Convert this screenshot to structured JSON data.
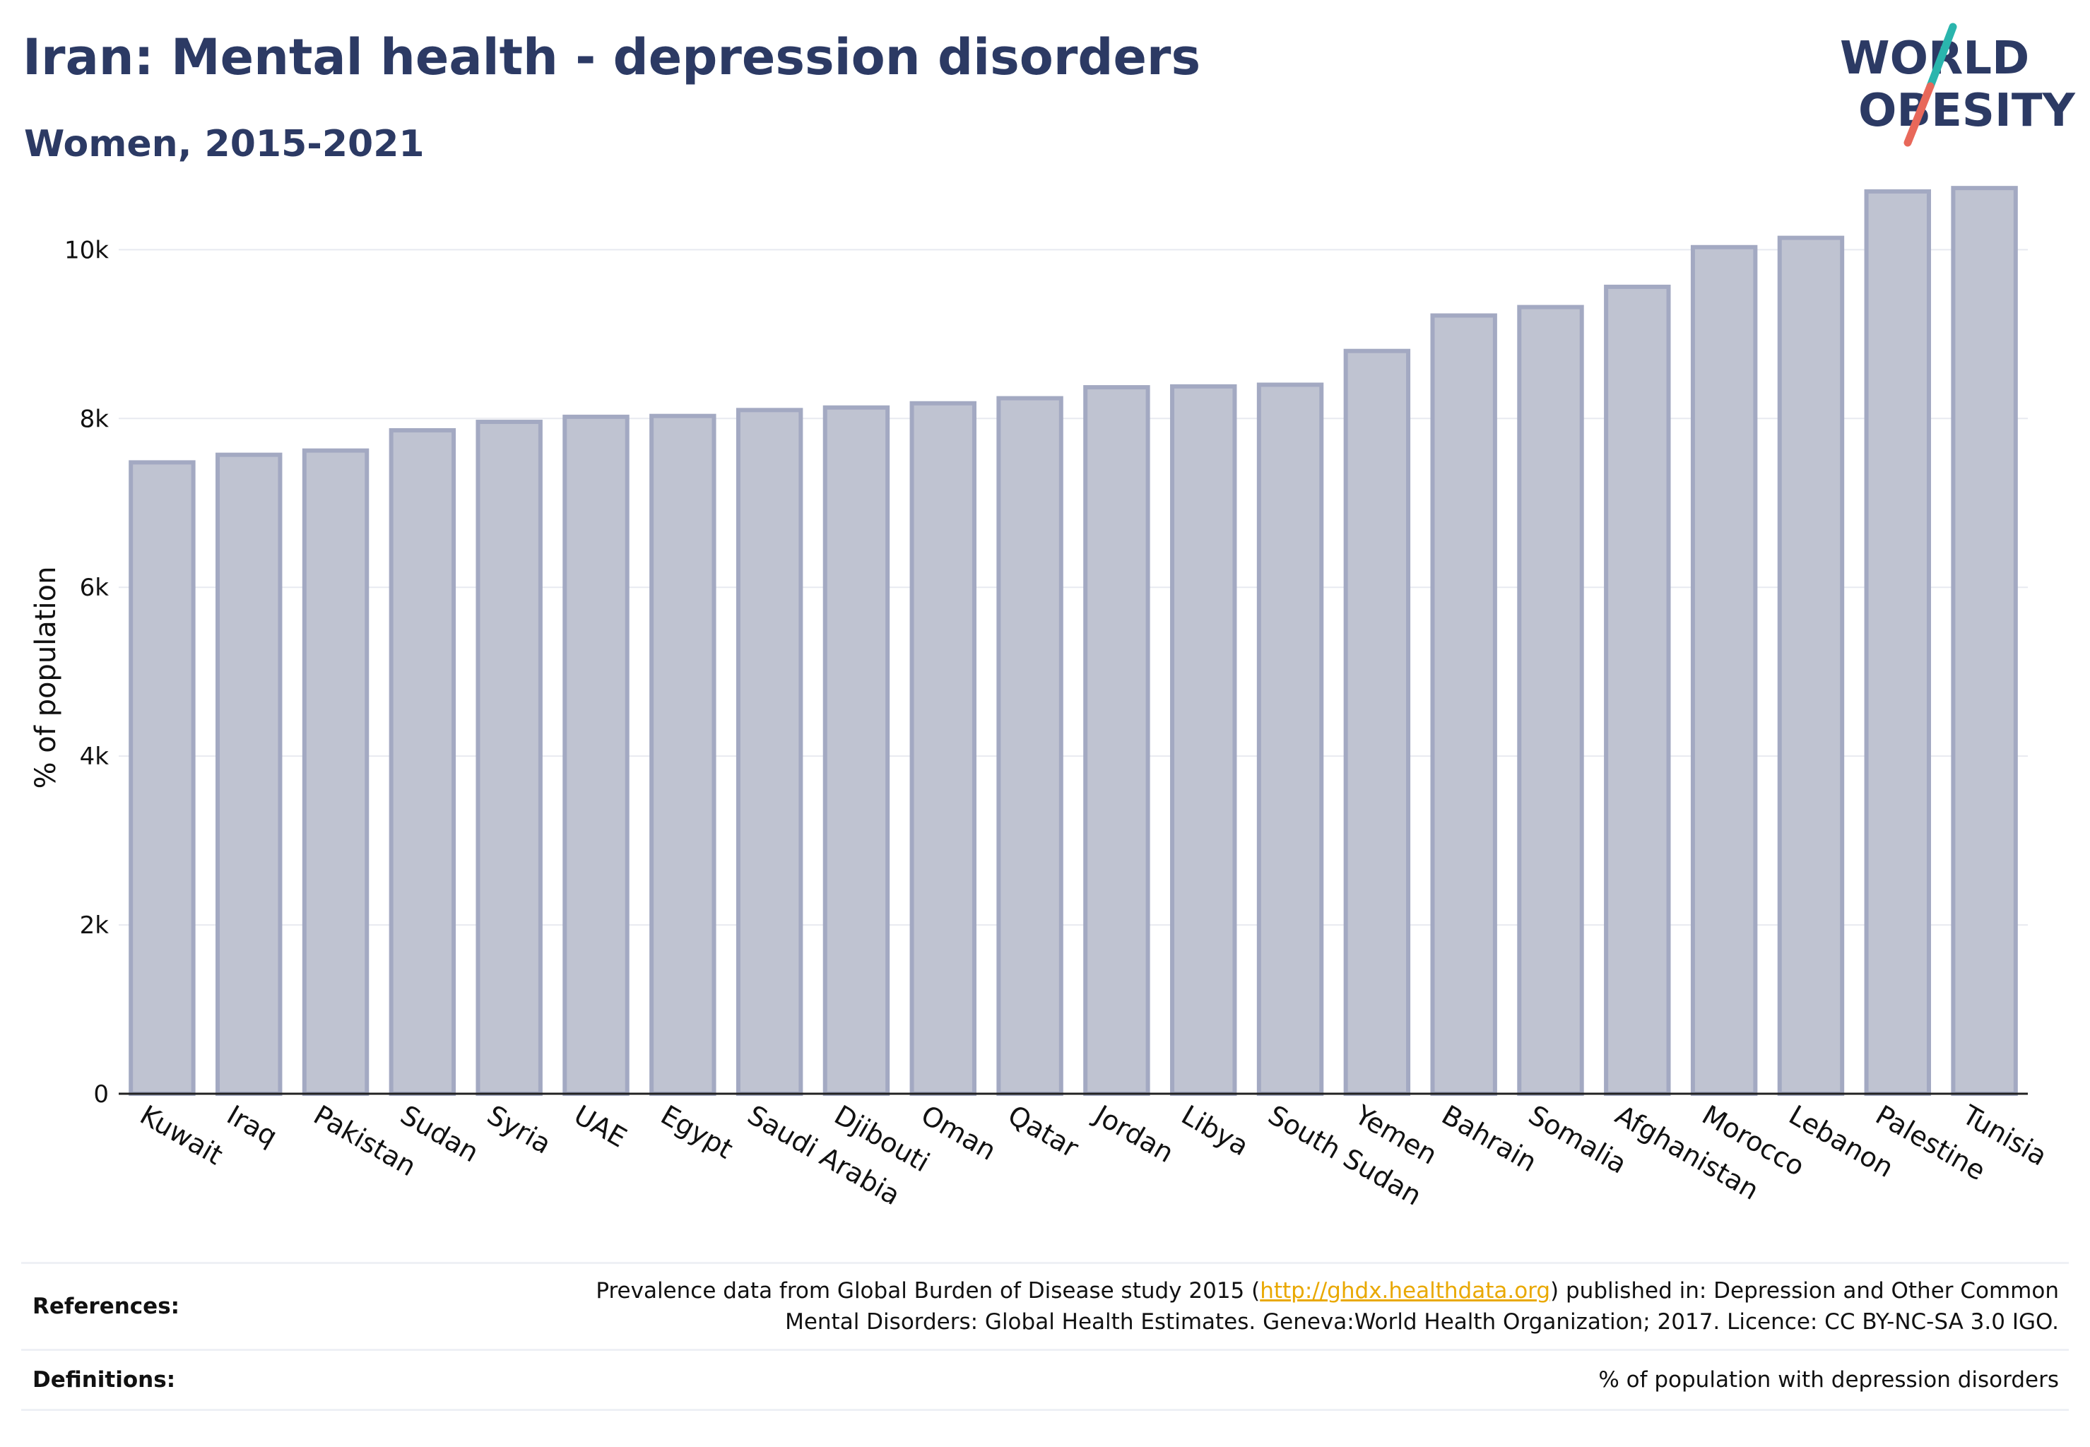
{
  "header": {
    "title": "Iran: Mental health - depression disorders",
    "subtitle": "Women, 2015-2021"
  },
  "logo": {
    "line1": "WORLD",
    "line2": "OBESITY",
    "text_color": "#2c3a64",
    "slash_colors": [
      "#2ab5ad",
      "#e8685a"
    ]
  },
  "chart_data": {
    "type": "bar",
    "title": "Iran: Mental health - depression disorders",
    "subtitle": "Women, 2015-2021",
    "xlabel": "",
    "ylabel": "% of population",
    "categories": [
      "Kuwait",
      "Iraq",
      "Pakistan",
      "Sudan",
      "Syria",
      "UAE",
      "Egypt",
      "Saudi Arabia",
      "Djibouti",
      "Oman",
      "Qatar",
      "Jordan",
      "Libya",
      "South Sudan",
      "Yemen",
      "Bahrain",
      "Somalia",
      "Afghanistan",
      "Morocco",
      "Lebanon",
      "Palestine",
      "Tunisia"
    ],
    "values": [
      7480,
      7570,
      7620,
      7860,
      7960,
      8020,
      8030,
      8100,
      8130,
      8180,
      8240,
      8370,
      8380,
      8400,
      8800,
      9220,
      9320,
      9560,
      10030,
      10140,
      10690,
      10730
    ],
    "ylim": [
      0,
      11200
    ],
    "yticks": [
      0,
      2000,
      4000,
      6000,
      8000,
      10000
    ],
    "ytick_labels": [
      "0",
      "2k",
      "4k",
      "6k",
      "8k",
      "10k"
    ],
    "grid": true,
    "bar_fill": "#bfc3d1",
    "bar_stroke": "#a3a9c2"
  },
  "footer": {
    "references_label": "References:",
    "references_text_before": "Prevalence data from Global Burden of Disease study 2015 (",
    "references_link": "http://ghdx.healthdata.org",
    "references_text_after": ") published in: Depression and Other Common",
    "references_text_line2": "Mental Disorders: Global Health Estimates. Geneva:World Health Organization; 2017. Licence: CC BY-NC-SA 3.0 IGO.",
    "definitions_label": "Definitions:",
    "definitions_text": "% of population with depression disorders"
  }
}
